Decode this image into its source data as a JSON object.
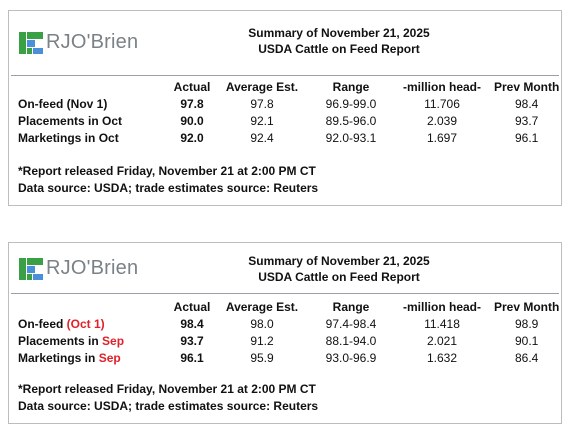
{
  "brand": {
    "logo_text": "RJO'Brien",
    "logo_green": "#3aa046",
    "logo_blue": "#4a90d9",
    "accent_red": "#e0202a"
  },
  "reports": [
    {
      "title_line1": "Summary of November 21, 2025",
      "title_line2": "USDA Cattle on Feed Report",
      "headers": {
        "actual": "Actual",
        "avg": "Average Est.",
        "range": "Range",
        "mil": "-million head-",
        "prev": "Prev Month"
      },
      "rows": [
        {
          "label_a": "On-feed ",
          "label_b": "(Nov 1)",
          "actual": "97.8",
          "avg": "97.8",
          "range": "96.9-99.0",
          "mil": "11.706",
          "prev": "98.4"
        },
        {
          "label_a": "Placements in ",
          "label_b": "Oct",
          "actual": "90.0",
          "avg": "92.1",
          "range": "89.5-96.0",
          "mil": "2.039",
          "prev": "93.7"
        },
        {
          "label_a": "Marketings in ",
          "label_b": "Oct",
          "actual": "92.0",
          "avg": "92.4",
          "range": "92.0-93.1",
          "mil": "1.697",
          "prev": "96.1"
        }
      ],
      "note1": "*Report released Friday, November 21 at 2:00 PM CT",
      "note2": "Data source: USDA; trade estimates source: Reuters"
    },
    {
      "title_line1": "Summary of November 21, 2025",
      "title_line2": "USDA Cattle on Feed Report",
      "headers": {
        "actual": "Actual",
        "avg": "Average Est.",
        "range": "Range",
        "mil": "-million head-",
        "prev": "Prev Month"
      },
      "rows": [
        {
          "label_a": "On-feed ",
          "label_b": "(Oct 1)",
          "actual": "98.4",
          "avg": "98.0",
          "range": "97.4-98.4",
          "mil": "11.418",
          "prev": "98.9"
        },
        {
          "label_a": "Placements in ",
          "label_b": "Sep",
          "actual": "93.7",
          "avg": "91.2",
          "range": "88.1-94.0",
          "mil": "2.021",
          "prev": "90.1"
        },
        {
          "label_a": "Marketings in ",
          "label_b": "Sep",
          "actual": "96.1",
          "avg": "95.9",
          "range": "93.0-96.9",
          "mil": "1.632",
          "prev": "86.4"
        }
      ],
      "note1": "*Report released Friday, November 21 at 2:00 PM CT",
      "note2": "Data source: USDA; trade estimates source: Reuters"
    }
  ]
}
